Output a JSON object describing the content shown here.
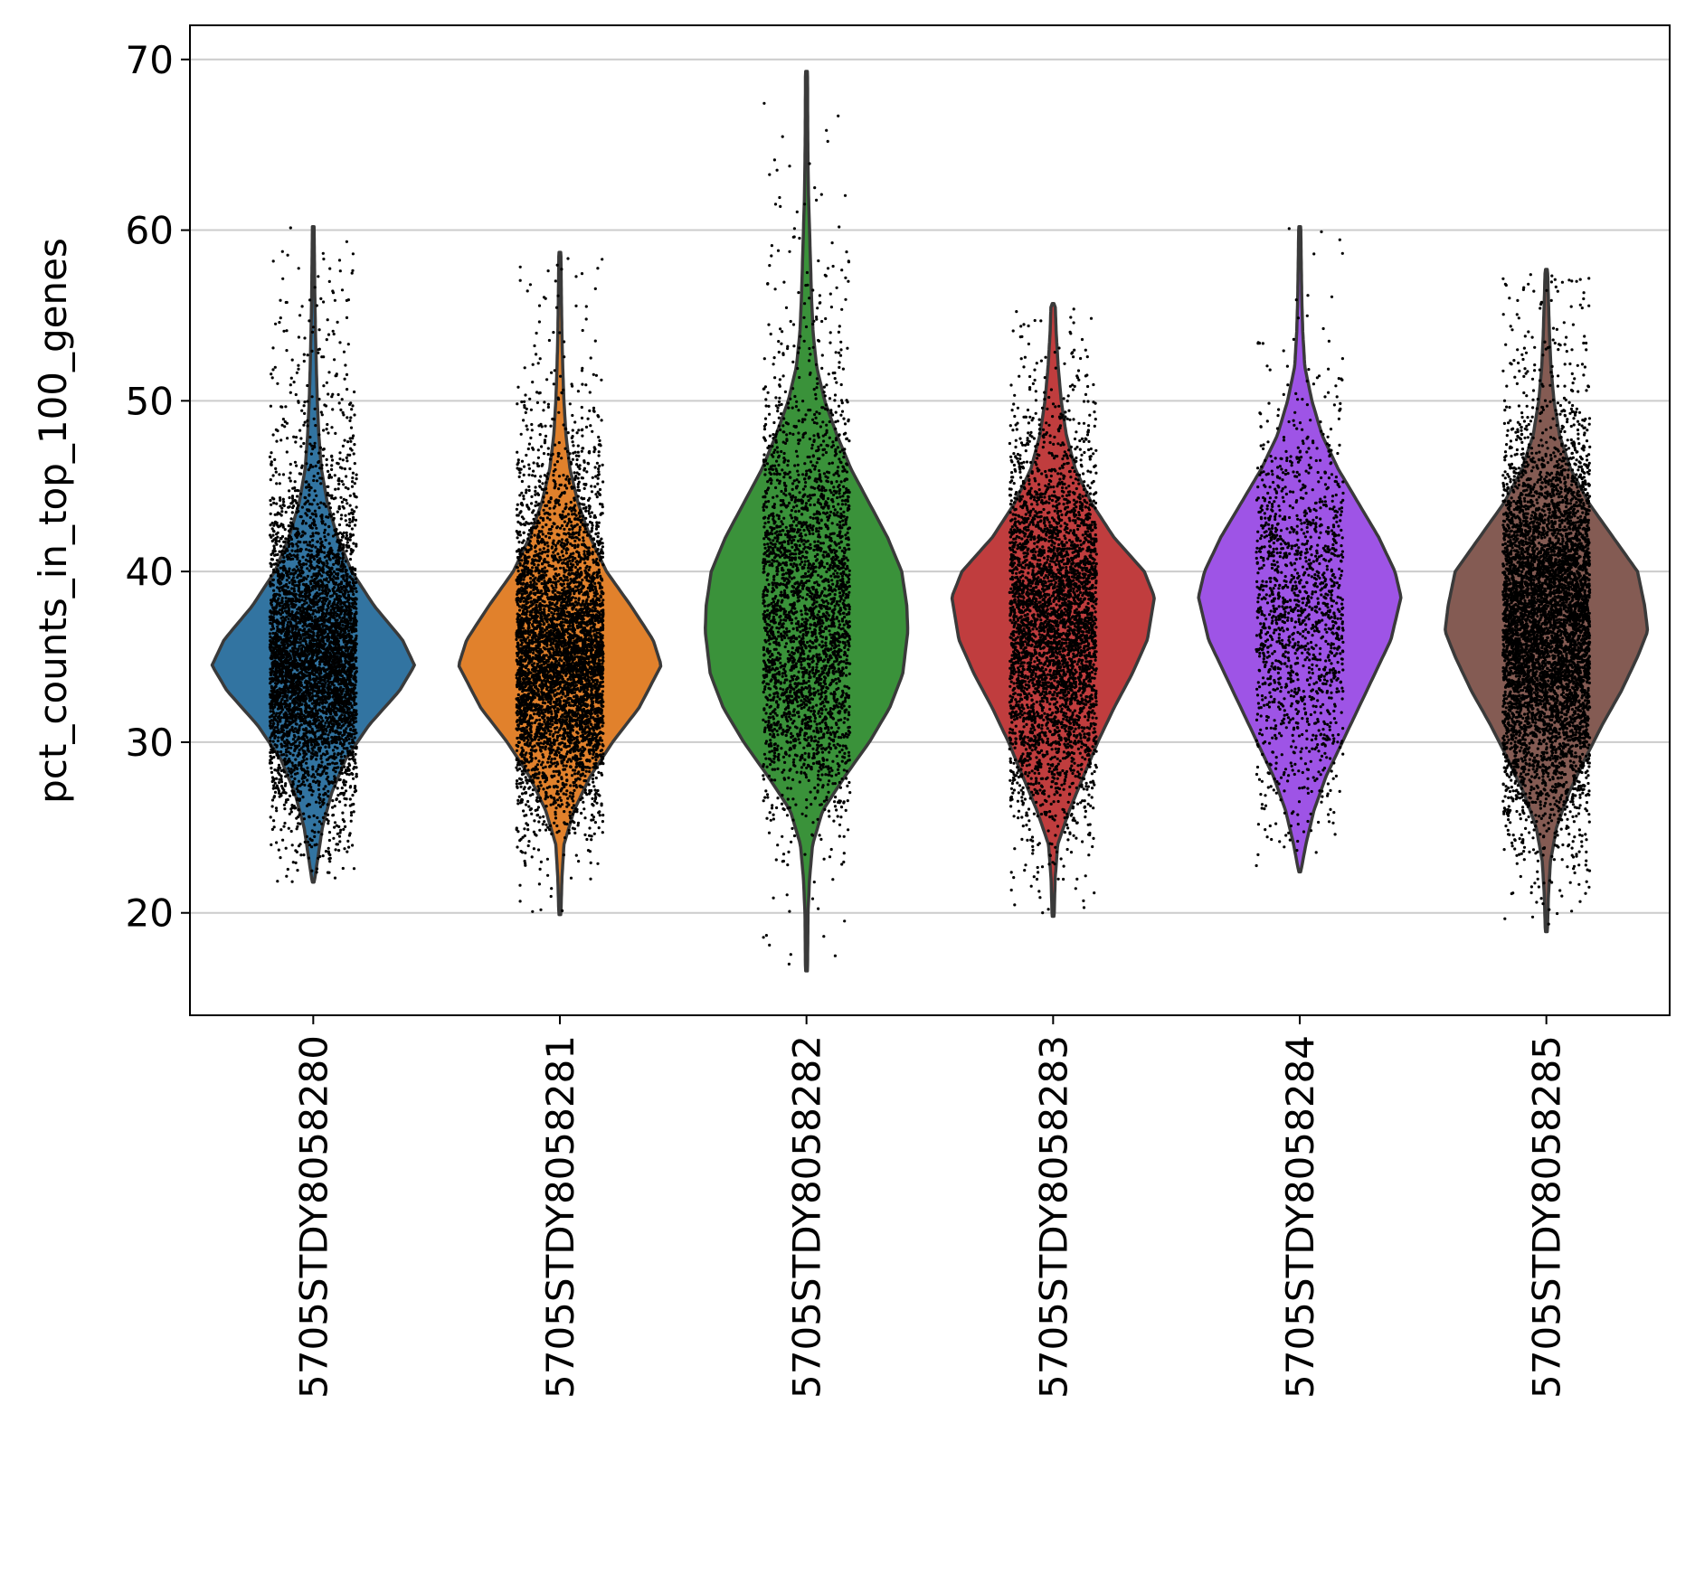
{
  "chart_data": {
    "type": "violin",
    "title": "",
    "xlabel": "",
    "ylabel": "pct_counts_in_top_100_genes",
    "ylim": [
      14,
      72
    ],
    "yticks": [
      20,
      30,
      40,
      50,
      60,
      70
    ],
    "grid": "horizontal",
    "legend": "none",
    "stripplot": true,
    "categories": [
      "5705STDY8058280",
      "5705STDY8058281",
      "5705STDY8058282",
      "5705STDY8058283",
      "5705STDY8058284",
      "5705STDY8058285"
    ],
    "colors": [
      "#3274a1",
      "#e1812c",
      "#3a923a",
      "#c03d3e",
      "#9e54e6",
      "#845b53"
    ],
    "violins": [
      {
        "min": 21.8,
        "max": 60.2,
        "median": 35.0,
        "count": 5000,
        "density": [
          [
            21.8,
            0.01
          ],
          [
            23,
            0.04
          ],
          [
            25,
            0.09
          ],
          [
            27,
            0.18
          ],
          [
            29,
            0.32
          ],
          [
            31,
            0.55
          ],
          [
            33,
            0.85
          ],
          [
            34.5,
            1.0
          ],
          [
            36,
            0.88
          ],
          [
            38,
            0.6
          ],
          [
            40,
            0.38
          ],
          [
            42,
            0.24
          ],
          [
            44,
            0.14
          ],
          [
            46,
            0.08
          ],
          [
            48,
            0.055
          ],
          [
            50,
            0.04
          ],
          [
            52,
            0.03
          ],
          [
            54,
            0.022
          ],
          [
            56,
            0.016
          ],
          [
            58,
            0.012
          ],
          [
            60.2,
            0.008
          ]
        ]
      },
      {
        "min": 19.9,
        "max": 58.7,
        "median": 35.5,
        "count": 5000,
        "density": [
          [
            19.9,
            0.01
          ],
          [
            22,
            0.02
          ],
          [
            24,
            0.04
          ],
          [
            26,
            0.14
          ],
          [
            28,
            0.3
          ],
          [
            30,
            0.52
          ],
          [
            32,
            0.78
          ],
          [
            34.5,
            1.0
          ],
          [
            36,
            0.92
          ],
          [
            38,
            0.7
          ],
          [
            40,
            0.46
          ],
          [
            42,
            0.3
          ],
          [
            44,
            0.18
          ],
          [
            46,
            0.1
          ],
          [
            48,
            0.06
          ],
          [
            50,
            0.04
          ],
          [
            52,
            0.028
          ],
          [
            54,
            0.02
          ],
          [
            56,
            0.015
          ],
          [
            58.7,
            0.01
          ]
        ]
      },
      {
        "min": 16.6,
        "max": 69.3,
        "median": 38.0,
        "count": 3000,
        "density": [
          [
            16.6,
            0.01
          ],
          [
            20,
            0.015
          ],
          [
            22,
            0.03
          ],
          [
            24,
            0.06
          ],
          [
            26,
            0.16
          ],
          [
            28,
            0.38
          ],
          [
            30,
            0.62
          ],
          [
            32,
            0.82
          ],
          [
            34,
            0.95
          ],
          [
            36.5,
            1.0
          ],
          [
            38,
            0.99
          ],
          [
            40,
            0.94
          ],
          [
            42,
            0.8
          ],
          [
            44,
            0.62
          ],
          [
            46,
            0.44
          ],
          [
            48,
            0.3
          ],
          [
            50,
            0.18
          ],
          [
            52,
            0.1
          ],
          [
            54,
            0.065
          ],
          [
            56,
            0.05
          ],
          [
            58,
            0.04
          ],
          [
            60,
            0.03
          ],
          [
            62,
            0.02
          ],
          [
            64,
            0.015
          ],
          [
            66,
            0.012
          ],
          [
            69.3,
            0.01
          ]
        ]
      },
      {
        "min": 19.8,
        "max": 55.7,
        "median": 37.0,
        "count": 4000,
        "density": [
          [
            19.8,
            0.01
          ],
          [
            22,
            0.02
          ],
          [
            24,
            0.045
          ],
          [
            26,
            0.16
          ],
          [
            28,
            0.3
          ],
          [
            30,
            0.44
          ],
          [
            32,
            0.6
          ],
          [
            34,
            0.78
          ],
          [
            36,
            0.93
          ],
          [
            38.5,
            1.0
          ],
          [
            40,
            0.9
          ],
          [
            42,
            0.6
          ],
          [
            44,
            0.38
          ],
          [
            46,
            0.22
          ],
          [
            48,
            0.13
          ],
          [
            50,
            0.08
          ],
          [
            52,
            0.05
          ],
          [
            54,
            0.03
          ],
          [
            55.7,
            0.02
          ]
        ]
      },
      {
        "min": 22.4,
        "max": 60.2,
        "median": 38.0,
        "count": 1500,
        "density": [
          [
            22.4,
            0.01
          ],
          [
            24,
            0.06
          ],
          [
            26,
            0.14
          ],
          [
            28,
            0.26
          ],
          [
            30,
            0.42
          ],
          [
            32,
            0.58
          ],
          [
            34,
            0.74
          ],
          [
            36,
            0.9
          ],
          [
            38.5,
            1.0
          ],
          [
            40,
            0.94
          ],
          [
            42,
            0.78
          ],
          [
            44,
            0.58
          ],
          [
            46,
            0.38
          ],
          [
            48,
            0.22
          ],
          [
            50,
            0.12
          ],
          [
            52,
            0.05
          ],
          [
            54,
            0.03
          ],
          [
            56,
            0.02
          ],
          [
            58,
            0.015
          ],
          [
            60.2,
            0.01
          ]
        ]
      },
      {
        "min": 18.9,
        "max": 57.7,
        "median": 36.5,
        "count": 6000,
        "density": [
          [
            18.9,
            0.01
          ],
          [
            21,
            0.02
          ],
          [
            23,
            0.04
          ],
          [
            25,
            0.1
          ],
          [
            27,
            0.22
          ],
          [
            29,
            0.38
          ],
          [
            31,
            0.55
          ],
          [
            33,
            0.74
          ],
          [
            35,
            0.9
          ],
          [
            36.5,
            1.0
          ],
          [
            38,
            0.97
          ],
          [
            40,
            0.9
          ],
          [
            42,
            0.66
          ],
          [
            44,
            0.42
          ],
          [
            46,
            0.24
          ],
          [
            48,
            0.13
          ],
          [
            50,
            0.075
          ],
          [
            52,
            0.045
          ],
          [
            54,
            0.03
          ],
          [
            56,
            0.02
          ],
          [
            57.7,
            0.012
          ]
        ]
      }
    ]
  }
}
